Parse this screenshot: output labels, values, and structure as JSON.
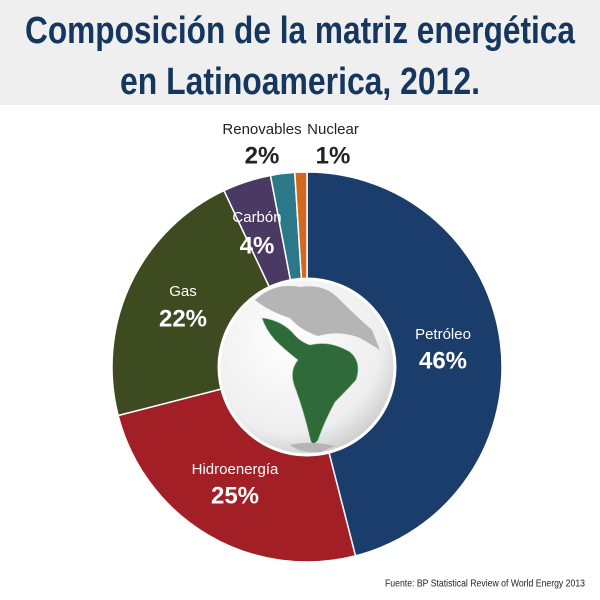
{
  "chart_data": {
    "type": "donut",
    "title": [
      "Composición de la matriz energética",
      "en Latinoamerica, 2012."
    ],
    "categories": [
      "Petróleo",
      "Hidroenergía",
      "Gas",
      "Carbón",
      "Renovables",
      "Nuclear"
    ],
    "values": [
      46,
      25,
      22,
      4,
      2,
      1
    ],
    "value_labels": [
      "46%",
      "25%",
      "22%",
      "4%",
      "2%",
      "1%"
    ],
    "colors": [
      "#1b3d6b",
      "#a21f26",
      "#3e4a1f",
      "#4a3a63",
      "#2b7889",
      "#d2691f"
    ],
    "source": "Fuente: BP Statistical Review of World Energy 2013"
  }
}
